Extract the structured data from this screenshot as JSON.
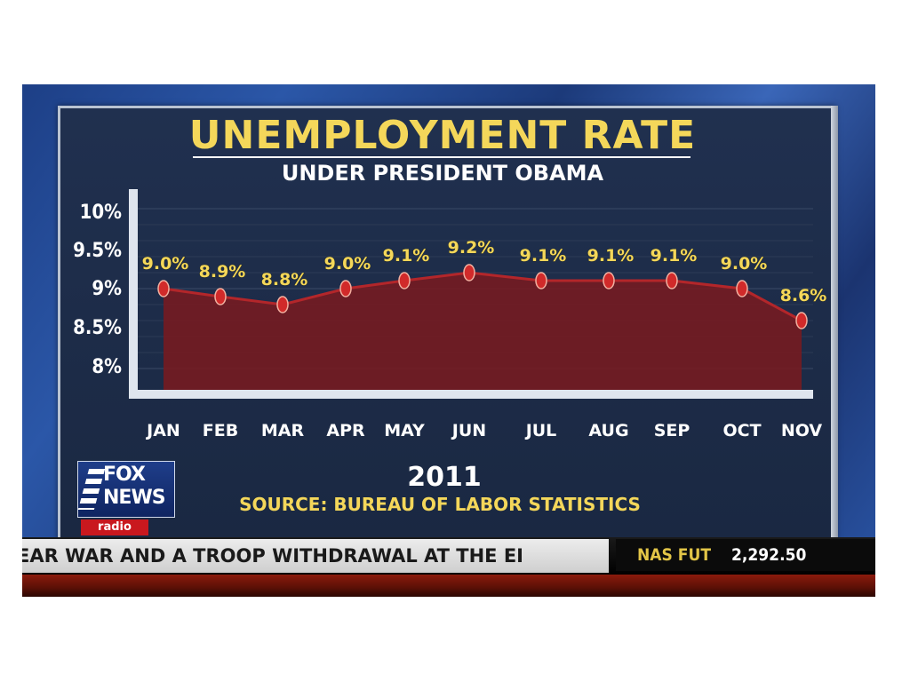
{
  "chart_data": {
    "type": "area",
    "title": "UNEMPLOYMENT RATE",
    "subtitle": "UNDER PRESIDENT OBAMA",
    "categories": [
      "JAN",
      "FEB",
      "MAR",
      "APR",
      "MAY",
      "JUN",
      "JUL",
      "AUG",
      "SEP",
      "OCT",
      "NOV"
    ],
    "series": [
      {
        "values": [
          9.0,
          8.9,
          8.8,
          9.0,
          9.1,
          9.2,
          9.1,
          9.1,
          9.1,
          9.0,
          8.6
        ]
      }
    ],
    "data_labels": [
      "9.0%",
      "8.9%",
      "8.8%",
      "9.0%",
      "9.1%",
      "9.2%",
      "9.1%",
      "9.1%",
      "9.1%",
      "9.0%",
      "8.6%"
    ],
    "y_ticks": [
      "10%",
      "9.5%",
      "9%",
      "8.5%",
      "8%"
    ],
    "ylim": [
      8,
      10
    ],
    "grid": true,
    "xlabel": "2011",
    "source": "SOURCE: BUREAU OF LABOR STATISTICS",
    "colors": {
      "title": "#f4d75a",
      "fill": "#7a1a1e",
      "marker": "#d12a2a",
      "line": "#b3262a"
    }
  },
  "logo": {
    "brand": "FOX NEWS",
    "sub": "radio"
  },
  "ticker": {
    "crawl": "EAR WAR AND A TROOP WITHDRAWAL AT THE EI",
    "stock_name": "NAS FUT",
    "stock_value": "2,292.50"
  }
}
